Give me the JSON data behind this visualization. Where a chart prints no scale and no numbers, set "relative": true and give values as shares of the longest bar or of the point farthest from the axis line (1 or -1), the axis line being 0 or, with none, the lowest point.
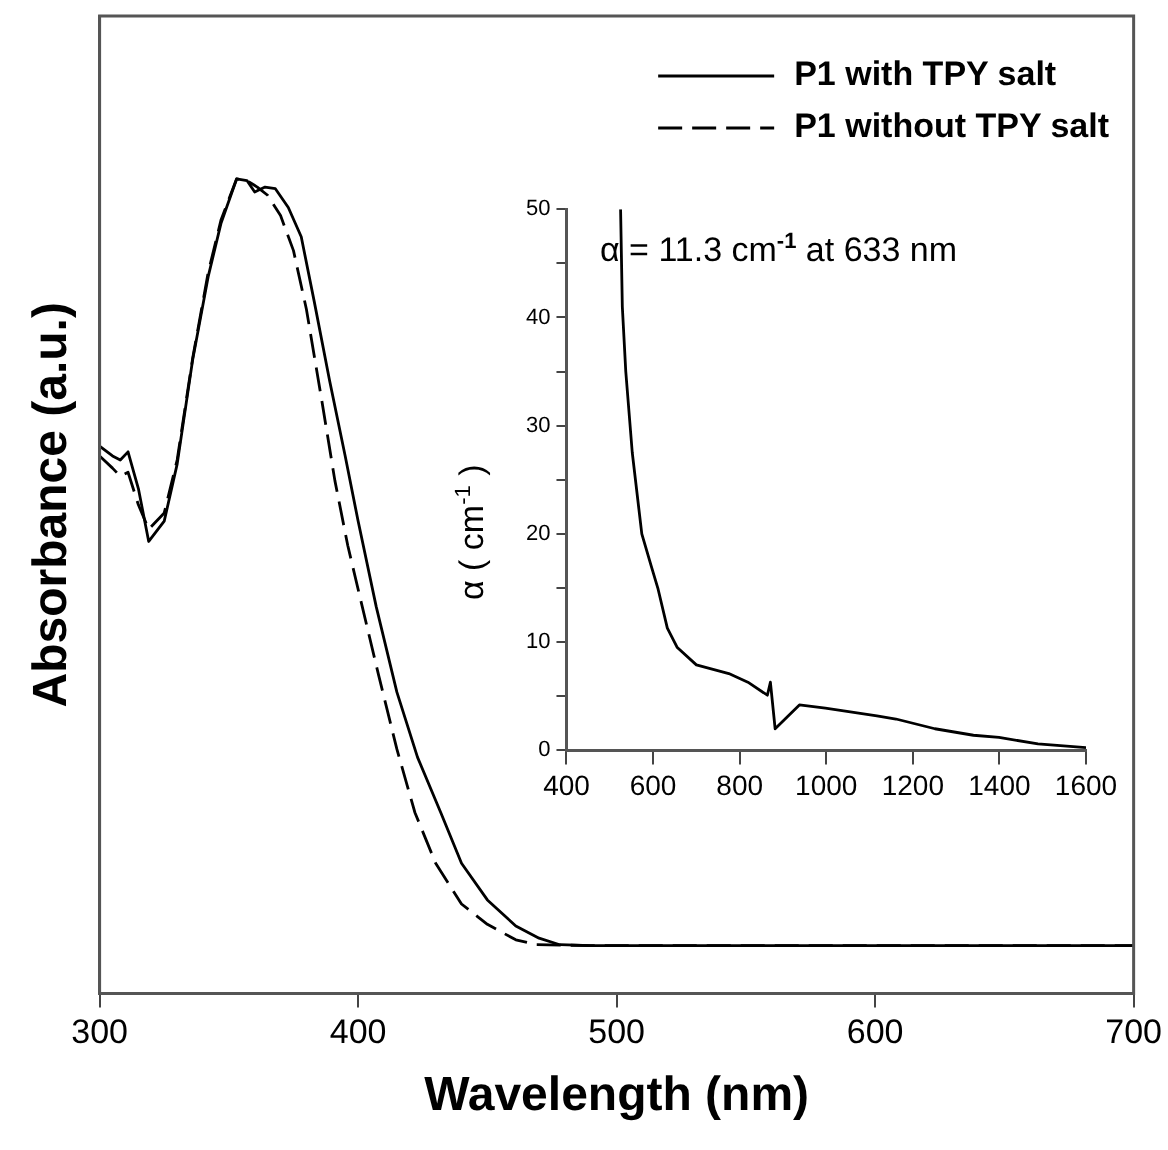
{
  "chart_data": [
    {
      "type": "line",
      "xlabel": "Wavelength (nm)",
      "ylabel": "Absorbance (a.u.)",
      "relative": true,
      "xlim": [
        300,
        700
      ],
      "xticks": [
        300,
        400,
        500,
        600,
        700
      ],
      "tick_labels": "x",
      "grid": false,
      "legend": "top right",
      "marker": "none",
      "series": [
        {
          "name": "P1 with TPY salt",
          "color": "#000000",
          "line_style": "solid",
          "x": [
            300,
            305,
            308,
            311,
            315,
            319,
            325,
            330,
            336,
            342,
            347,
            353,
            357,
            360,
            364,
            368,
            373,
            378,
            383,
            389,
            395,
            400,
            407,
            415,
            423,
            432,
            440,
            450,
            461,
            470,
            478,
            490,
            700
          ],
          "values": [
            0.672,
            0.66,
            0.655,
            0.665,
            0.62,
            0.555,
            0.58,
            0.65,
            0.778,
            0.88,
            0.946,
            1.0,
            0.998,
            0.984,
            0.99,
            0.988,
            0.965,
            0.929,
            0.85,
            0.752,
            0.66,
            0.58,
            0.475,
            0.37,
            0.29,
            0.222,
            0.16,
            0.115,
            0.083,
            0.068,
            0.06,
            0.059,
            0.059
          ]
        },
        {
          "name": "P1 without TPY salt",
          "color": "#000000",
          "line_style": "dashed",
          "x": [
            300,
            305,
            308,
            311,
            315,
            319,
            325,
            330,
            336,
            342,
            347,
            353,
            357,
            361,
            365,
            370,
            375,
            380,
            386,
            391,
            396,
            401,
            408,
            415,
            422,
            430,
            440,
            450,
            461,
            469,
            490,
            700
          ],
          "values": [
            0.66,
            0.645,
            0.635,
            0.64,
            0.6,
            0.57,
            0.59,
            0.655,
            0.78,
            0.885,
            0.95,
            1.0,
            0.998,
            0.99,
            0.98,
            0.955,
            0.912,
            0.84,
            0.727,
            0.63,
            0.55,
            0.483,
            0.39,
            0.3,
            0.222,
            0.16,
            0.11,
            0.085,
            0.066,
            0.06,
            0.059,
            0.059
          ]
        }
      ]
    },
    {
      "type": "line",
      "ylabel": "α ( cm$^{-1}$ )",
      "xlim": [
        400,
        1600
      ],
      "xticks": [
        400,
        600,
        800,
        1000,
        1200,
        1400,
        1600
      ],
      "ylim": [
        0,
        50
      ],
      "yticks": [
        0,
        {
          "value": 5,
          "label": null
        },
        10,
        {
          "value": 15,
          "label": null
        },
        20,
        {
          "value": 25,
          "label": null
        },
        30,
        {
          "value": 35,
          "label": null
        },
        40,
        {
          "value": 45,
          "label": null
        },
        50
      ],
      "grid": false,
      "legend": false,
      "marker": "none",
      "annotations": [
        "α = 11.3 cm$^{-1}$ at 633 nm"
      ],
      "series": [
        {
          "color": "#000000",
          "line_style": "solid",
          "x": [
            525,
            529,
            537,
            552,
            574,
            596,
            611,
            633,
            656,
            700,
            775,
            819,
            864,
            871,
            882,
            938,
            998,
            1117,
            1161,
            1251,
            1340,
            1399,
            1489,
            1600
          ],
          "values": [
            50,
            41,
            35,
            27.5,
            20,
            17,
            15,
            11.3,
            9.5,
            7.9,
            7.1,
            6.3,
            5.1,
            6.3,
            2.0,
            4.2,
            3.9,
            3.2,
            2.9,
            2.0,
            1.4,
            1.2,
            0.6,
            0.25
          ]
        }
      ]
    }
  ]
}
